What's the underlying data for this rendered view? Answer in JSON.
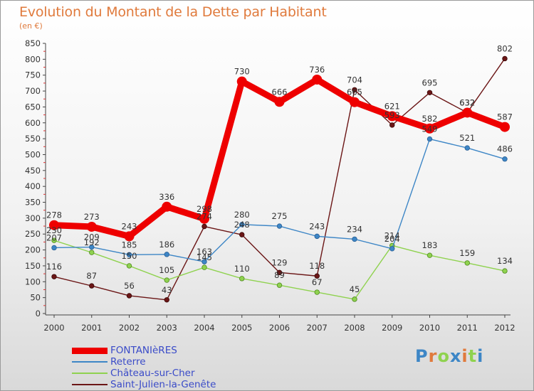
{
  "title": "Evolution du Montant de la Dette par Habitant",
  "subtitle": "(en €)",
  "brand": "Proxiti",
  "chart_data": {
    "type": "line",
    "x": [
      "2000",
      "2001",
      "2002",
      "2003",
      "2004",
      "2005",
      "2006",
      "2007",
      "2008",
      "2009",
      "2010",
      "2011",
      "2012"
    ],
    "yticks": [
      0,
      50,
      100,
      150,
      200,
      250,
      300,
      350,
      400,
      450,
      500,
      550,
      600,
      650,
      700,
      750,
      800,
      850
    ],
    "ylim": [
      0,
      850
    ],
    "grid": false,
    "legend_position": "bottom",
    "series": [
      {
        "name": "FONTANIèRES",
        "color": "#ee0000",
        "values": [
          278,
          273,
          243,
          336,
          298,
          730,
          666,
          736,
          665,
          621,
          582,
          632,
          587
        ]
      },
      {
        "name": "Reterre",
        "color": "#3d86c6",
        "values": [
          207,
          209,
          185,
          186,
          163,
          280,
          275,
          243,
          234,
          204,
          549,
          521,
          486
        ]
      },
      {
        "name": "Château-sur-Cher",
        "color": "#8fd24f",
        "values": [
          230,
          192,
          150,
          105,
          145,
          110,
          89,
          67,
          45,
          214,
          183,
          159,
          134
        ]
      },
      {
        "name": "Saint-Julien-la-Genête",
        "color": "#6b1616",
        "values": [
          116,
          87,
          56,
          43,
          274,
          248,
          129,
          118,
          704,
          593,
          695,
          632,
          802
        ]
      }
    ]
  }
}
